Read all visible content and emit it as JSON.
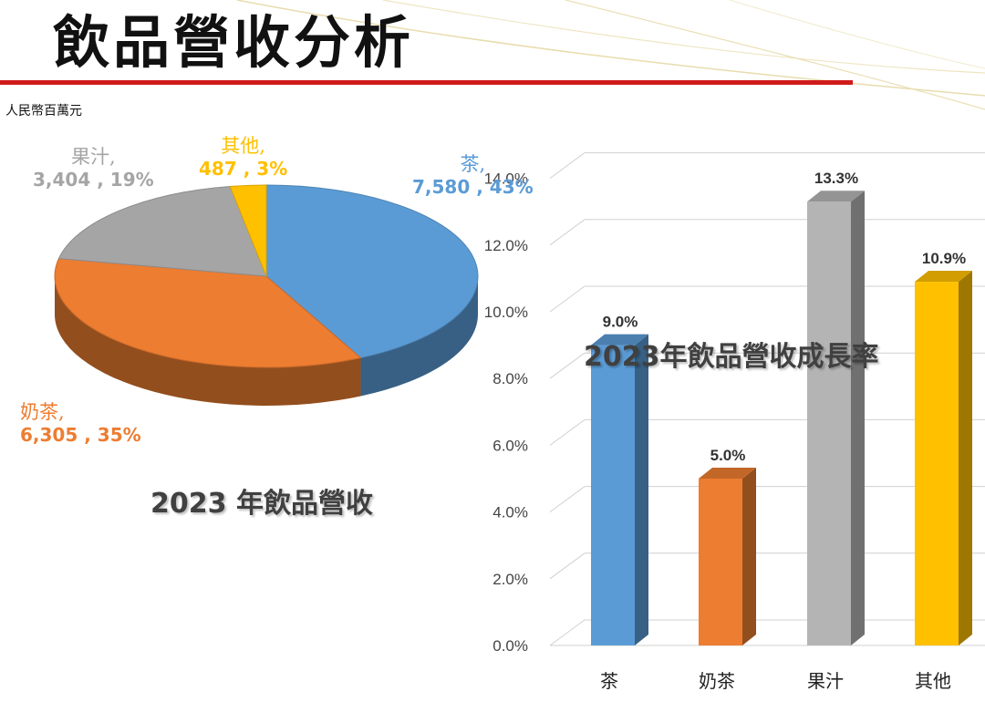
{
  "page": {
    "title": "飲品營收分析",
    "unit": "人民幣百萬元"
  },
  "colors": {
    "tea": "#5b9bd5",
    "milk_tea": "#ed7d31",
    "juice": "#a5a5a5",
    "other": "#ffc000",
    "rule": "#d11a1a"
  },
  "chart_data": [
    {
      "type": "pie",
      "title": "2023 年飲品營收",
      "slices": [
        {
          "name": "茶,",
          "value": 7580,
          "value_label": "7,580",
          "percent_label": "43%",
          "color": "#5b9bd5"
        },
        {
          "name": "奶茶,",
          "value": 6305,
          "value_label": "6,305",
          "percent_label": "35%",
          "color": "#ed7d31"
        },
        {
          "name": "果汁,",
          "value": 3404,
          "value_label": "3,404",
          "percent_label": "19%",
          "color": "#a5a5a5"
        },
        {
          "name": "其他,",
          "value": 487,
          "value_label": "487",
          "percent_label": "3%",
          "color": "#ffc000"
        }
      ]
    },
    {
      "type": "bar",
      "title": "2023年飲品營收成長率",
      "categories": [
        "茶",
        "奶茶",
        "果汁",
        "其他"
      ],
      "values": [
        9.0,
        5.0,
        13.3,
        10.9
      ],
      "data_labels": [
        "9.0%",
        "5.0%",
        "13.3%",
        "10.9%"
      ],
      "colors": [
        "#5b9bd5",
        "#ed7d31",
        "#b4b4b4",
        "#ffc000"
      ],
      "ylim": [
        0,
        14
      ],
      "y_ticks": [
        "0.0%",
        "2.0%",
        "4.0%",
        "6.0%",
        "8.0%",
        "10.0%",
        "12.0%",
        "14.0%"
      ],
      "grid": true
    }
  ]
}
